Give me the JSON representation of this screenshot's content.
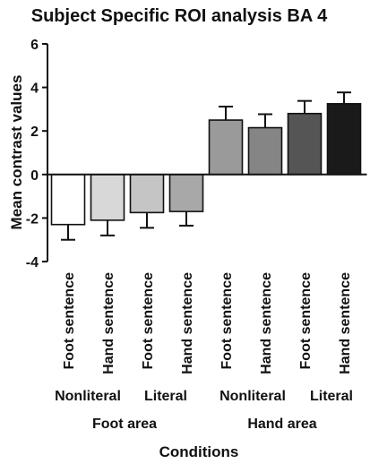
{
  "chart_data": {
    "type": "bar",
    "title": "Subject Specific ROI analysis BA 4",
    "xlabel": "Conditions",
    "ylabel": "Mean contrast values",
    "ylim": [
      -4,
      6
    ],
    "yticks": [
      -4,
      -2,
      0,
      2,
      4,
      6
    ],
    "grid": false,
    "categories": [
      "Foot sentence",
      "Hand sentence",
      "Foot sentence",
      "Hand sentence",
      "Foot sentence",
      "Hand sentence",
      "Foot sentence",
      "Hand sentence"
    ],
    "values": [
      -2.3,
      -2.1,
      -1.75,
      -1.7,
      2.5,
      2.15,
      2.8,
      3.25
    ],
    "errors": [
      0.7,
      0.7,
      0.7,
      0.65,
      0.62,
      0.62,
      0.58,
      0.52
    ],
    "bar_colors": [
      "#ffffff",
      "#d8d8d8",
      "#c5c5c5",
      "#a8a8a8",
      "#9a9a9a",
      "#858585",
      "#555555",
      "#1a1a1a"
    ],
    "group_labels_level1": [
      "Nonliteral",
      "Literal",
      "Nonliteral",
      "Literal"
    ],
    "group_labels_level2": [
      "Foot area",
      "Hand area"
    ]
  }
}
